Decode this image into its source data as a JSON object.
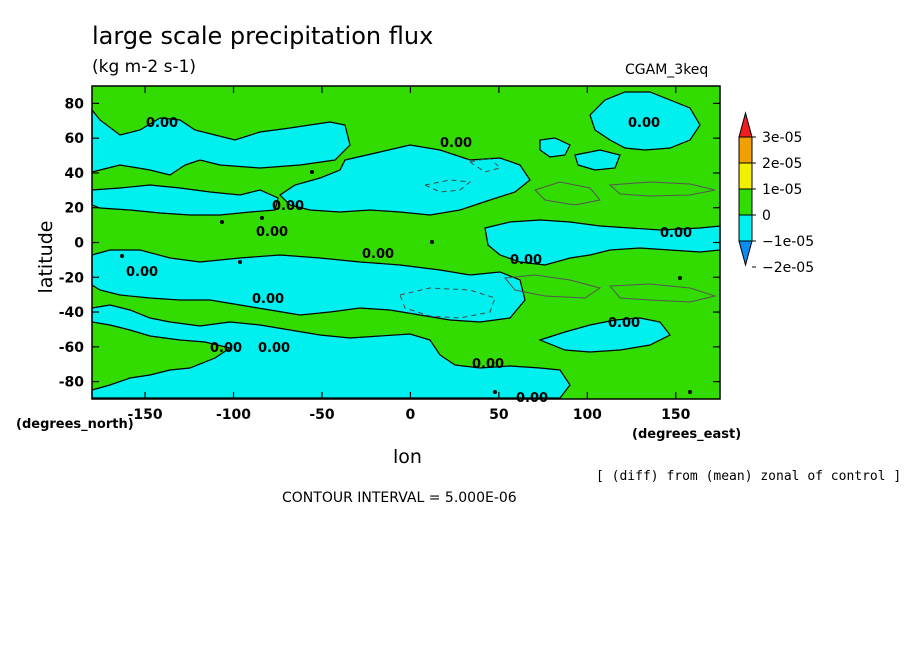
{
  "chart_data": {
    "type": "heatmap",
    "title": "large scale precipitation flux",
    "subtitle": "(kg m-2 s-1)",
    "run_label": "CGAM_3keq",
    "xlabel": "lon",
    "ylabel": "latitude",
    "x_unit_label": "(degrees_east)",
    "y_unit_label": "(degrees_north)",
    "xlim": [
      -180,
      175
    ],
    "ylim": [
      -90,
      90
    ],
    "x_ticks": [
      -150,
      -100,
      -50,
      0,
      50,
      100,
      150
    ],
    "y_ticks": [
      80,
      60,
      40,
      20,
      0,
      -20,
      -40,
      -60,
      -80
    ],
    "grid": false,
    "legend_placement": "right",
    "colorbar": {
      "labels": [
        "3e-05",
        "2e-05",
        "1e-05",
        "0",
        "−1e-05",
        "−2e-05"
      ],
      "levels": [
        -2.5e-05,
        -2e-05,
        -1e-05,
        0,
        1e-05,
        2e-05,
        3e-05
      ],
      "colors": [
        "#0a8cf0",
        "#00f0f0",
        "#32dc00",
        "#f0f000",
        "#f0a000",
        "#f01e1e"
      ]
    },
    "contour_labels": [
      "0.00",
      "0.00",
      "0.00",
      "0.00",
      "0.00",
      "0.00",
      "0.00",
      "0.00",
      "0.00",
      "0.00",
      "0.00",
      "0.00",
      "0.00",
      "0.00",
      "0.00"
    ],
    "notes": {
      "comparison": "[ (diff) from (mean) zonal of control ]",
      "contour_interval": "CONTOUR INTERVAL = 5.000E-06"
    },
    "field_colors": {
      "positive_0_to_1e-05": "#32dc00",
      "negative_-1e-05_to_0": "#00f0f0"
    }
  }
}
